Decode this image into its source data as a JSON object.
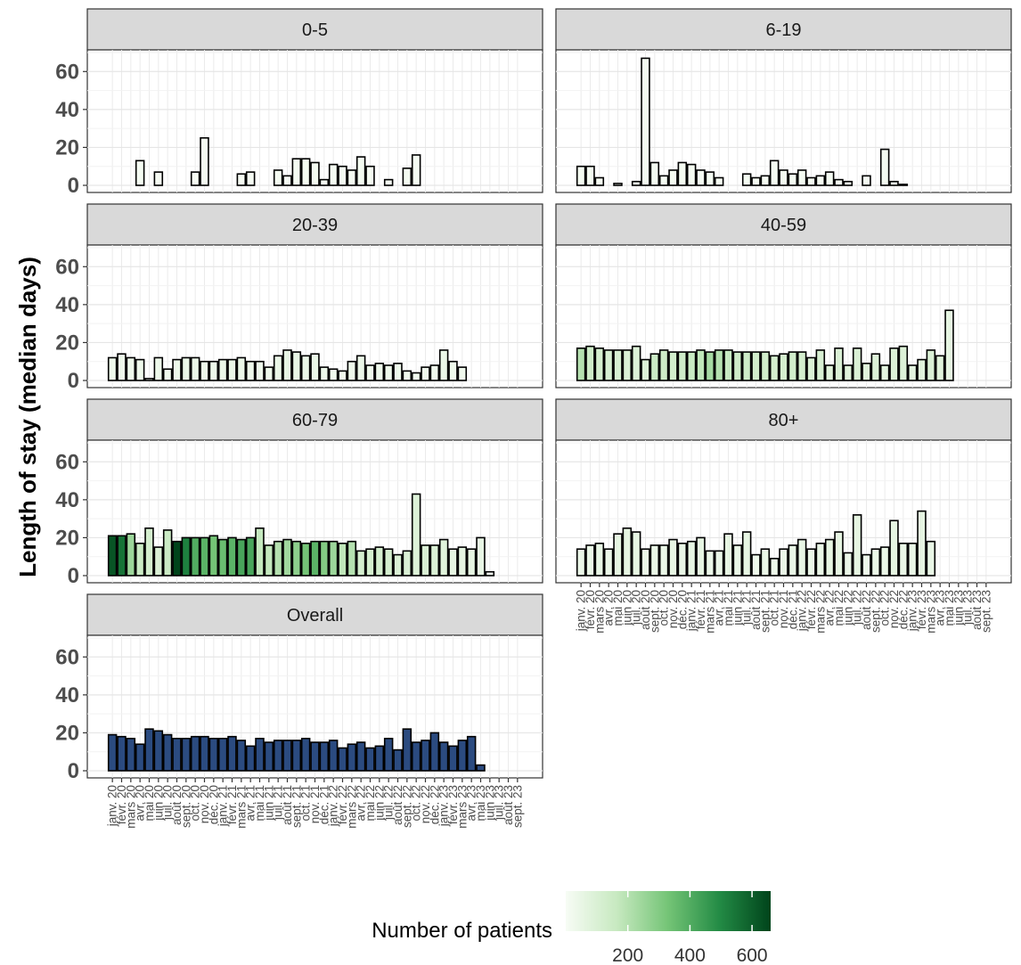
{
  "chart_data": {
    "type": "bar",
    "ylabel": "Length of stay (median days)",
    "xlabel": "",
    "ylim": [
      0,
      70
    ],
    "yticks": [
      0,
      20,
      40,
      60
    ],
    "grid": true,
    "months": [
      "janv. 20",
      "févr. 20",
      "mars 20",
      "avr. 20",
      "mai 20",
      "juin 20",
      "juil. 20",
      "août 20",
      "sept. 20",
      "oct. 20",
      "nov. 20",
      "déc. 20",
      "janv. 21",
      "févr. 21",
      "mars 21",
      "avr. 21",
      "mai 21",
      "juin 21",
      "juil. 21",
      "août 21",
      "sept. 21",
      "oct. 21",
      "nov. 21",
      "déc. 21",
      "janv. 22",
      "févr. 22",
      "mars 22",
      "avr. 22",
      "mai 22",
      "juin 22",
      "juil. 22",
      "août 22",
      "sept. 22",
      "oct. 22",
      "nov. 22",
      "déc. 22",
      "janv. 23",
      "févr. 23",
      "mars 23",
      "avr. 23",
      "mai 23",
      "juin 23",
      "juil. 23",
      "août 23",
      "sept. 23"
    ],
    "tick_labels": [
      "janv. 20",
      "févr. 20",
      "mars 20",
      "avr. 20",
      "mai 20",
      "juin 20",
      "juil. 20",
      "août 20",
      "sept. 20",
      "oct. 20",
      "nov. 20",
      "déc. 20",
      "janv. 21",
      "févr. 21",
      "mars 21",
      "avr. 21",
      "mai 21",
      "juin 21",
      "juil. 21",
      "août 21",
      "sept. 21",
      "oct. 21",
      "nov. 21",
      "déc. 21",
      "janv. 22",
      "févr. 22",
      "mars 22",
      "avr. 22",
      "mai 22",
      "juin 22",
      "juil. 22",
      "août 22",
      "sept. 22",
      "oct. 22",
      "nov. 22",
      "déc. 22",
      "janv. 23",
      "févr. 23",
      "mars 23",
      "avr. 23",
      "mai 23",
      "juin 23",
      "juil. 23",
      "août 23",
      "sept. 23"
    ],
    "legend": {
      "title": "Number of patients",
      "type": "colorbar",
      "colors": [
        "#f7fcf5",
        "#c7e9c0",
        "#74c476",
        "#238b45",
        "#00441b"
      ],
      "ticks": [
        200,
        400,
        600
      ],
      "range": [
        0,
        660
      ],
      "placement": "bottom"
    },
    "overall_fill": "#2b4b80",
    "panels": [
      {
        "name": "0-5",
        "values": [
          null,
          null,
          null,
          13,
          null,
          7,
          null,
          null,
          null,
          7,
          25,
          null,
          null,
          null,
          6,
          7,
          null,
          null,
          8,
          5,
          14,
          14,
          12,
          3,
          11,
          10,
          8,
          15,
          10,
          null,
          3,
          null,
          9,
          16,
          null,
          null,
          null,
          null,
          null,
          null,
          null,
          null,
          null,
          null,
          null
        ],
        "patients": [
          0,
          0,
          0,
          10,
          0,
          5,
          0,
          0,
          0,
          5,
          8,
          0,
          0,
          0,
          5,
          6,
          0,
          0,
          8,
          6,
          10,
          12,
          12,
          4,
          10,
          10,
          8,
          12,
          8,
          0,
          4,
          0,
          8,
          10,
          0,
          0,
          0,
          0,
          0,
          0,
          0,
          0,
          0,
          0,
          0
        ]
      },
      {
        "name": "6-19",
        "values": [
          10,
          10,
          4,
          null,
          1,
          null,
          2,
          67,
          12,
          5,
          8,
          12,
          11,
          8,
          7,
          4,
          null,
          null,
          6,
          4,
          5,
          13,
          8,
          6,
          8,
          4,
          5,
          7,
          3,
          2,
          null,
          5,
          null,
          19,
          2,
          0.5,
          null,
          null,
          null,
          null,
          null,
          null,
          null,
          null,
          null
        ],
        "patients": [
          12,
          12,
          8,
          0,
          5,
          0,
          6,
          10,
          14,
          10,
          12,
          12,
          12,
          10,
          10,
          8,
          0,
          0,
          10,
          8,
          8,
          14,
          12,
          10,
          10,
          8,
          8,
          10,
          8,
          6,
          0,
          8,
          0,
          14,
          6,
          4,
          0,
          0,
          0,
          0,
          0,
          0,
          0,
          0,
          0
        ]
      },
      {
        "name": "20-39",
        "values": [
          12,
          14,
          12,
          11,
          1,
          12,
          6,
          11,
          12,
          12,
          10,
          10,
          11,
          11,
          12,
          10,
          10,
          7,
          13,
          16,
          15,
          13,
          14,
          7,
          6,
          5,
          10,
          13,
          8,
          9,
          8,
          9,
          5,
          4,
          7,
          8,
          16,
          10,
          7,
          null,
          null,
          null,
          null,
          null,
          null
        ],
        "patients": [
          30,
          35,
          30,
          30,
          10,
          30,
          25,
          35,
          40,
          40,
          35,
          35,
          40,
          40,
          40,
          35,
          35,
          30,
          40,
          50,
          50,
          45,
          45,
          30,
          25,
          25,
          35,
          40,
          30,
          30,
          30,
          30,
          25,
          20,
          25,
          25,
          40,
          30,
          25,
          0,
          0,
          0,
          0,
          0,
          0
        ]
      },
      {
        "name": "40-59",
        "values": [
          17,
          18,
          17,
          16,
          16,
          16,
          18,
          11,
          14,
          16,
          15,
          15,
          15,
          16,
          15,
          16,
          16,
          15,
          15,
          15,
          15,
          13,
          14,
          15,
          15,
          12,
          16,
          8,
          17,
          8,
          17,
          9,
          14,
          8,
          17,
          18,
          8,
          11,
          16,
          13,
          37,
          null,
          null,
          null,
          null
        ],
        "patients": [
          200,
          140,
          120,
          110,
          110,
          100,
          90,
          90,
          150,
          140,
          130,
          140,
          160,
          180,
          230,
          200,
          160,
          140,
          140,
          130,
          130,
          120,
          120,
          130,
          120,
          100,
          110,
          80,
          100,
          80,
          100,
          80,
          90,
          70,
          90,
          90,
          70,
          80,
          100,
          80,
          60,
          0,
          0,
          0,
          0
        ]
      },
      {
        "name": "60-79",
        "values": [
          21,
          21,
          22,
          17,
          25,
          15,
          24,
          18,
          20,
          20,
          20,
          21,
          19,
          20,
          19,
          20,
          25,
          16,
          18,
          19,
          18,
          17,
          18,
          18,
          18,
          17,
          18,
          13,
          14,
          15,
          14,
          11,
          13,
          43,
          16,
          16,
          19,
          14,
          15,
          14,
          20,
          2,
          null,
          null,
          null
        ],
        "patients": [
          620,
          550,
          250,
          150,
          120,
          100,
          150,
          680,
          520,
          400,
          380,
          330,
          350,
          380,
          420,
          420,
          170,
          170,
          200,
          240,
          280,
          330,
          380,
          300,
          250,
          180,
          200,
          120,
          120,
          120,
          120,
          100,
          100,
          90,
          100,
          100,
          80,
          60,
          60,
          60,
          50,
          10,
          0,
          0,
          0
        ]
      },
      {
        "name": "80+",
        "values": [
          14,
          16,
          17,
          14,
          22,
          25,
          23,
          14,
          16,
          16,
          19,
          17,
          18,
          20,
          13,
          13,
          22,
          16,
          23,
          11,
          14,
          9,
          14,
          16,
          19,
          14,
          17,
          19,
          23,
          12,
          32,
          11,
          14,
          15,
          29,
          17,
          17,
          34,
          18,
          null,
          null,
          null,
          null,
          null,
          null
        ],
        "patients": [
          40,
          45,
          50,
          40,
          60,
          60,
          55,
          40,
          45,
          45,
          55,
          50,
          55,
          60,
          40,
          40,
          55,
          45,
          55,
          30,
          40,
          30,
          40,
          45,
          50,
          40,
          45,
          55,
          60,
          40,
          60,
          30,
          40,
          40,
          60,
          45,
          45,
          60,
          45,
          0,
          0,
          0,
          0,
          0,
          0
        ]
      },
      {
        "name": "Overall",
        "values": [
          19,
          18,
          17,
          14,
          22,
          21,
          19,
          17,
          17,
          18,
          18,
          17,
          17,
          18,
          16,
          13,
          17,
          15,
          16,
          16,
          16,
          17,
          15,
          15,
          16,
          12,
          14,
          15,
          12,
          13,
          17,
          11,
          22,
          15,
          16,
          20,
          15,
          13,
          16,
          18,
          3,
          null,
          null,
          null,
          null
        ],
        "patients": []
      }
    ]
  }
}
